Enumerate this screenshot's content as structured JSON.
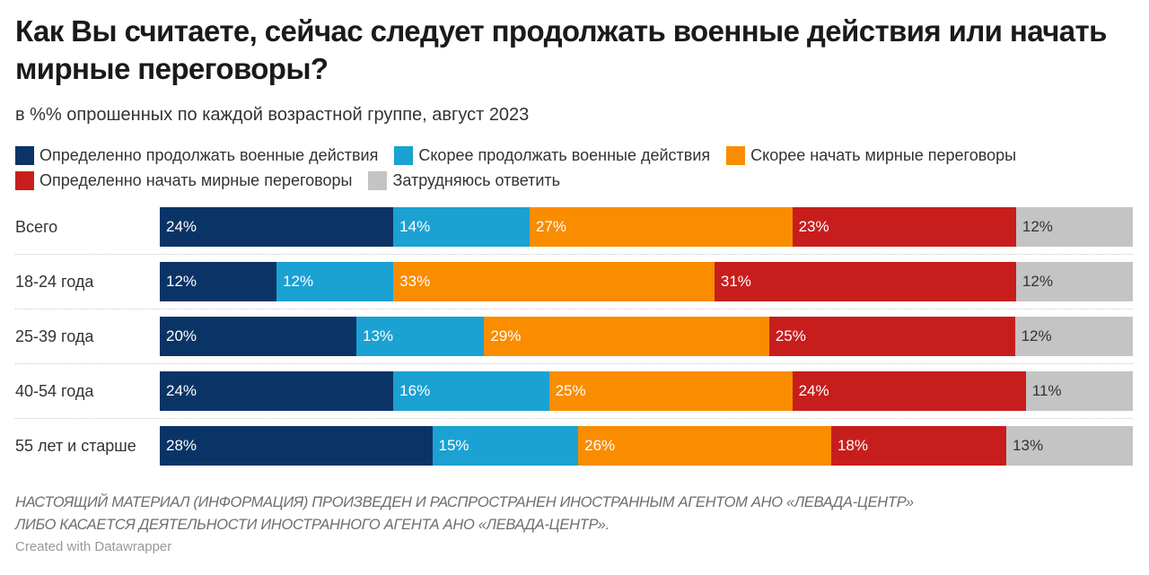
{
  "chart_data": {
    "type": "bar",
    "orientation": "horizontal",
    "stacked": true,
    "title": "Как Вы считаете, сейчас следует продолжать военные действия или начать мирные переговоры?",
    "subtitle": "в %% опрошенных по каждой возрастной группе, август 2023",
    "xlabel": "",
    "ylabel": "",
    "xlim": [
      0,
      100
    ],
    "grid": false,
    "legend_position": "top-left",
    "categories": [
      "Всего",
      "18-24 года",
      "25-39 года",
      "40-54 года",
      "55 лет и старше"
    ],
    "series": [
      {
        "name": "Определенно продолжать военные действия",
        "color": "#0b3466",
        "label_color": "#ffffff",
        "values": [
          24,
          12,
          20,
          24,
          28
        ]
      },
      {
        "name": "Скорее продолжать военные действия",
        "color": "#1ba1d2",
        "label_color": "#ffffff",
        "values": [
          14,
          12,
          13,
          16,
          15
        ]
      },
      {
        "name": "Скорее начать мирные переговоры",
        "color": "#fa8c00",
        "label_color": "#ffffff",
        "values": [
          27,
          33,
          29,
          25,
          26
        ]
      },
      {
        "name": "Определенно начать мирные переговоры",
        "color": "#c71e1d",
        "label_color": "#ffffff",
        "values": [
          23,
          31,
          25,
          24,
          18
        ]
      },
      {
        "name": "Затрудняюсь ответить",
        "color": "#c4c4c4",
        "label_color": "#333333",
        "values": [
          12,
          12,
          12,
          11,
          13
        ]
      }
    ],
    "value_suffix": "%"
  },
  "notes": {
    "line1": "НАСТОЯЩИЙ МАТЕРИАЛ (ИНФОРМАЦИЯ) ПРОИЗВЕДЕН И РАСПРОСТРАНЕН ИНОСТРАННЫМ АГЕНТОМ АНО «ЛЕВАДА-ЦЕНТР»",
    "line2": "ЛИБО КАСАЕТСЯ ДЕЯТЕЛЬНОСТИ ИНОСТРАННОГО АГЕНТА АНО «ЛЕВАДА-ЦЕНТР»."
  },
  "credit": "Created with Datawrapper"
}
